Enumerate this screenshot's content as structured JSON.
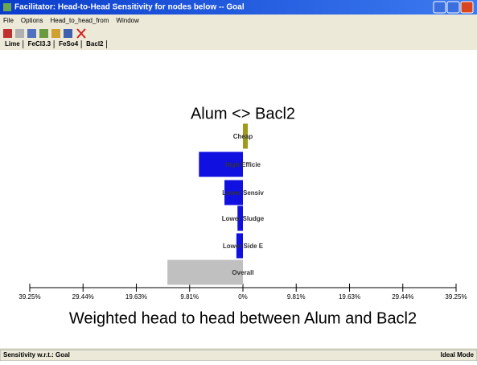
{
  "window": {
    "title": "Facilitator: Head-to-Head Sensitivity for nodes below -- Goal",
    "menu": [
      "File",
      "Options",
      "Head_to_head_from",
      "Window"
    ],
    "tabs": [
      "Lime",
      "FeCl3.3",
      "FeSo4",
      "Bacl2"
    ],
    "status_left": "Sensitivity w.r.t.: Goal",
    "status_right": "Ideal Mode"
  },
  "chart_data": {
    "type": "bar",
    "orientation": "horizontal",
    "title": "Alum <> Bacl2",
    "x_label": "Weighted head to head between Alum and Bacl2",
    "categories": [
      "Cheap",
      "High Efficie",
      "Lower Sensiv",
      "Lower Sludge",
      "Lower Side E",
      "Overall"
    ],
    "values": [
      0.9,
      -8.1,
      -3.4,
      -1.0,
      -1.2,
      -13.9
    ],
    "colors": [
      "#9e9a1e",
      "#1010e0",
      "#1010e0",
      "#1010e0",
      "#1010e0",
      "#c0c0c0"
    ],
    "xlim": [
      -39.25,
      39.25
    ],
    "xticks": [
      {
        "value": -39.25,
        "label": "39.25%"
      },
      {
        "value": -29.44,
        "label": "29.44%"
      },
      {
        "value": -19.63,
        "label": "19.63%"
      },
      {
        "value": -9.81,
        "label": "9.81%"
      },
      {
        "value": 0,
        "label": "0%"
      },
      {
        "value": 9.81,
        "label": "9.81%"
      },
      {
        "value": 19.63,
        "label": "19.63%"
      },
      {
        "value": 29.44,
        "label": "29.44%"
      },
      {
        "value": 39.25,
        "label": "39.25%"
      }
    ]
  }
}
